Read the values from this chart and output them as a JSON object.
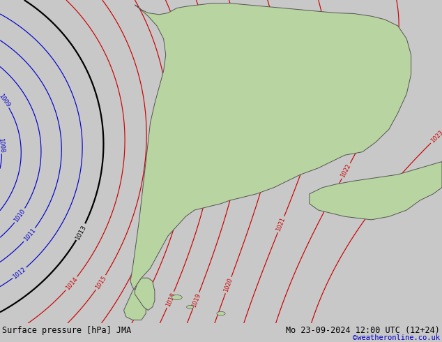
{
  "title_left": "Surface pressure [hPa] JMA",
  "title_right": "Mo 23-09-2024 12:00 UTC (12+24)",
  "credit": "©weatheronline.co.uk",
  "bg_color": "#c0ccd8",
  "land_color": "#b8d4a0",
  "border_color": "#555555",
  "fig_width": 6.34,
  "fig_height": 4.9,
  "dpi": 100,
  "bottom_bar_color": "#c8c8c8",
  "bottom_bar_height": 0.055,
  "isobar_color_red": "#cc0000",
  "isobar_color_blue": "#0000cc",
  "isobar_color_black": "#000000",
  "font_size_bottom": 8.5,
  "font_size_credit": 7.5,
  "credit_color": "#0000cc"
}
